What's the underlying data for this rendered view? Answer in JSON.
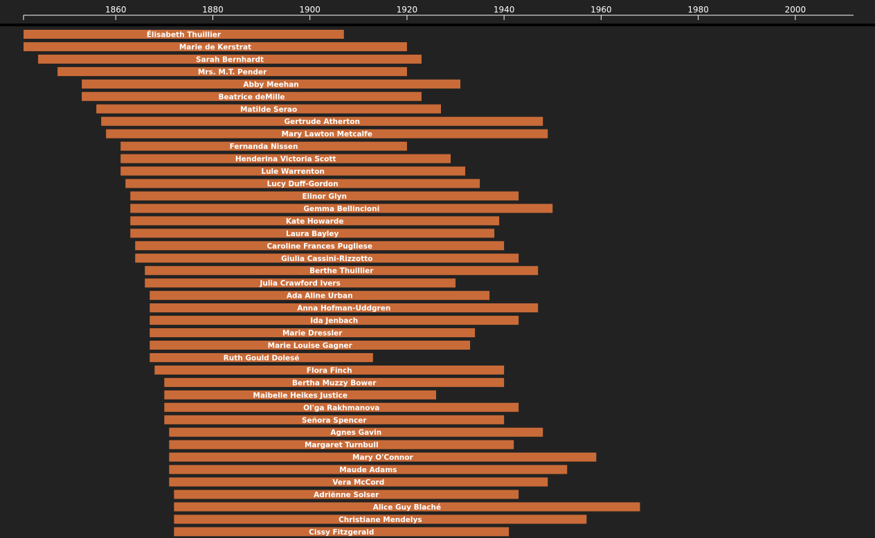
{
  "colors": {
    "background": "#222222",
    "bar": "#c96b38",
    "axis": "#ffffff",
    "separator": "#000000",
    "text": "#ffffff"
  },
  "chart_data": {
    "type": "bar",
    "orientation": "horizontal",
    "xlim": [
      1841,
      2012
    ],
    "ticks": [
      1860,
      1880,
      1900,
      1920,
      1940,
      1960,
      1980,
      2000
    ],
    "tick_labels": [
      "1860",
      "1880",
      "1900",
      "1920",
      "1940",
      "1960",
      "1980",
      "2000"
    ],
    "grid": false,
    "legend": "none",
    "series": [
      {
        "values": [
          {
            "label": "Élisabeth Thuillier",
            "start": 1841,
            "end": 1907
          },
          {
            "label": "Marie de Kerstrat",
            "start": 1841,
            "end": 1920
          },
          {
            "label": "Sarah Bernhardt",
            "start": 1844,
            "end": 1923
          },
          {
            "label": "Mrs. M.T. Pender",
            "start": 1848,
            "end": 1920
          },
          {
            "label": "Abby Meehan",
            "start": 1853,
            "end": 1931
          },
          {
            "label": "Beatrice deMille",
            "start": 1853,
            "end": 1923
          },
          {
            "label": "Matilde Serao",
            "start": 1856,
            "end": 1927
          },
          {
            "label": "Gertrude Atherton",
            "start": 1857,
            "end": 1948
          },
          {
            "label": "Mary Lawton Metcalfe",
            "start": 1858,
            "end": 1949
          },
          {
            "label": "Fernanda Nissen",
            "start": 1861,
            "end": 1920
          },
          {
            "label": "Henderina Victoria Scott",
            "start": 1861,
            "end": 1929
          },
          {
            "label": "Lule Warrenton",
            "start": 1861,
            "end": 1932
          },
          {
            "label": "Lucy Duff-Gordon",
            "start": 1862,
            "end": 1935
          },
          {
            "label": "Elinor Glyn",
            "start": 1863,
            "end": 1943
          },
          {
            "label": "Gemma Bellincioni",
            "start": 1863,
            "end": 1950
          },
          {
            "label": "Kate Howarde",
            "start": 1863,
            "end": 1939
          },
          {
            "label": "Laura Bayley",
            "start": 1863,
            "end": 1938
          },
          {
            "label": "Caroline Frances Pugliese",
            "start": 1864,
            "end": 1940
          },
          {
            "label": "Giulia Cassini-Rizzotto",
            "start": 1864,
            "end": 1943
          },
          {
            "label": "Berthe Thuillier",
            "start": 1866,
            "end": 1947
          },
          {
            "label": "Julia Crawford Ivers",
            "start": 1866,
            "end": 1930
          },
          {
            "label": "Ada Aline Urban",
            "start": 1867,
            "end": 1937
          },
          {
            "label": "Anna Hofman-Uddgren",
            "start": 1867,
            "end": 1947
          },
          {
            "label": "Ida Jenbach",
            "start": 1867,
            "end": 1943
          },
          {
            "label": "Marie Dressler",
            "start": 1867,
            "end": 1934
          },
          {
            "label": "Marie Louise Gagner",
            "start": 1867,
            "end": 1933
          },
          {
            "label": "Ruth Gould Dolesé",
            "start": 1867,
            "end": 1913
          },
          {
            "label": "Flora Finch",
            "start": 1868,
            "end": 1940
          },
          {
            "label": "Bertha Muzzy Bower",
            "start": 1870,
            "end": 1940
          },
          {
            "label": "Maibelle Heikes Justice",
            "start": 1870,
            "end": 1926
          },
          {
            "label": "Ol'ga Rakhmanova",
            "start": 1870,
            "end": 1943
          },
          {
            "label": "Señora Spencer",
            "start": 1870,
            "end": 1940
          },
          {
            "label": "Agnes Gavin",
            "start": 1871,
            "end": 1948
          },
          {
            "label": "Margaret Turnbull",
            "start": 1871,
            "end": 1942
          },
          {
            "label": "Mary O'Connor",
            "start": 1871,
            "end": 1959
          },
          {
            "label": "Maude Adams",
            "start": 1871,
            "end": 1953
          },
          {
            "label": "Vera McCord",
            "start": 1871,
            "end": 1949
          },
          {
            "label": "Adriënne Solser",
            "start": 1872,
            "end": 1943
          },
          {
            "label": "Alice Guy Blaché",
            "start": 1872,
            "end": 1968
          },
          {
            "label": "Christiane Mendelys",
            "start": 1872,
            "end": 1957
          },
          {
            "label": "Cissy Fitzgerald",
            "start": 1872,
            "end": 1941
          }
        ]
      }
    ]
  }
}
